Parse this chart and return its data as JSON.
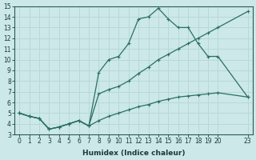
{
  "xlabel": "Humidex (Indice chaleur)",
  "bg_color": "#cce8e8",
  "grid_color": "#b8d8d8",
  "line_color": "#2a7060",
  "line1_x": [
    0,
    1,
    2,
    3,
    4,
    5,
    6,
    7,
    8,
    9,
    10,
    11,
    12,
    13,
    14,
    15,
    16,
    17,
    18,
    19,
    20,
    23
  ],
  "line1_y": [
    5.0,
    4.7,
    4.5,
    3.5,
    3.7,
    4.0,
    4.3,
    3.8,
    8.8,
    10.0,
    10.3,
    11.5,
    13.8,
    14.0,
    14.8,
    13.8,
    13.0,
    13.0,
    11.5,
    10.3,
    10.3,
    6.5
  ],
  "line2_x": [
    0,
    1,
    2,
    3,
    4,
    5,
    6,
    7,
    8,
    9,
    10,
    11,
    12,
    13,
    14,
    15,
    16,
    17,
    18,
    19,
    20,
    23
  ],
  "line2_y": [
    5.0,
    4.7,
    4.5,
    3.5,
    3.7,
    4.0,
    4.3,
    3.8,
    6.8,
    7.2,
    7.5,
    8.0,
    8.7,
    9.3,
    10.0,
    10.5,
    11.0,
    11.5,
    12.0,
    12.5,
    13.0,
    14.5
  ],
  "line3_x": [
    0,
    1,
    2,
    3,
    4,
    5,
    6,
    7,
    8,
    9,
    10,
    11,
    12,
    13,
    14,
    15,
    16,
    17,
    18,
    19,
    20,
    23
  ],
  "line3_y": [
    5.0,
    4.7,
    4.5,
    3.5,
    3.7,
    4.0,
    4.3,
    3.8,
    4.3,
    4.7,
    5.0,
    5.3,
    5.6,
    5.8,
    6.1,
    6.3,
    6.5,
    6.6,
    6.7,
    6.8,
    6.9,
    6.5
  ],
  "xlim": [
    -0.5,
    23.5
  ],
  "ylim": [
    3,
    15
  ],
  "xticks": [
    0,
    1,
    2,
    3,
    4,
    5,
    6,
    7,
    8,
    9,
    10,
    11,
    12,
    13,
    14,
    15,
    16,
    17,
    18,
    19,
    20,
    23
  ],
  "yticks": [
    3,
    4,
    5,
    6,
    7,
    8,
    9,
    10,
    11,
    12,
    13,
    14,
    15
  ],
  "tick_fontsize": 5.5,
  "xlabel_fontsize": 6.5
}
